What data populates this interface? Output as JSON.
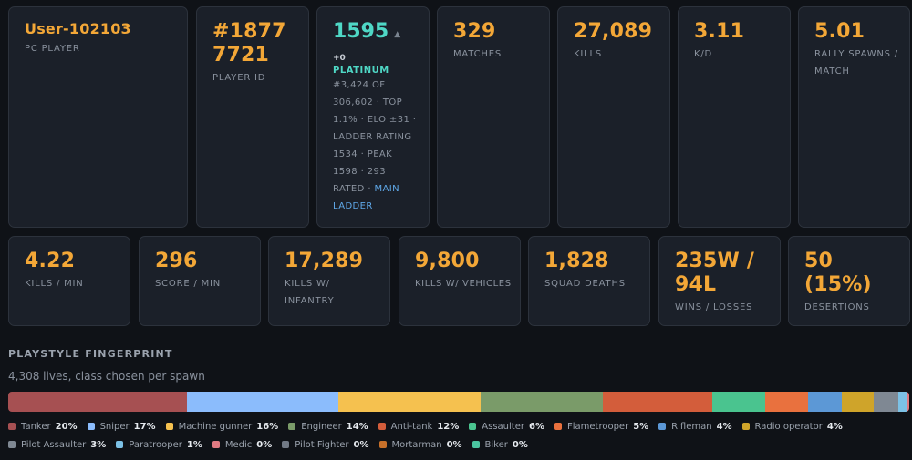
{
  "player": {
    "name": "User-102103",
    "platform": "PC PLAYER",
    "id_value": "#18777721",
    "id_label": "PLAYER ID"
  },
  "elo": {
    "value": "1595",
    "arrow": "▲",
    "delta": "+0",
    "tier": "PLATINUM",
    "desc_line1": "#3,424 of 306,602 · Top 1.1% · ELO ±31 · Ladder rating 1534 · Peak 1598 · 293 rated · ",
    "ladder_link": "Main Ladder"
  },
  "stats_row1": [
    {
      "value": "329",
      "label": "MATCHES"
    },
    {
      "value": "27,089",
      "label": "KILLS"
    },
    {
      "value": "3.11",
      "label": "K/D"
    },
    {
      "value": "5.01",
      "label": "RALLY SPAWNS / MATCH"
    }
  ],
  "stats_row2": [
    {
      "value": "4.22",
      "label": "KILLS / MIN"
    },
    {
      "value": "296",
      "label": "SCORE / MIN"
    },
    {
      "value": "17,289",
      "label": "KILLS W/ INFANTRY"
    },
    {
      "value": "9,800",
      "label": "KILLS W/ VEHICLES"
    },
    {
      "value": "1,828",
      "label": "SQUAD DEATHS"
    },
    {
      "value": "235W / 94L",
      "label": "WINS / LOSSES"
    },
    {
      "value": "50 (15%)",
      "label": "DESERTIONS"
    }
  ],
  "playstyle": {
    "title": "PLAYSTYLE FINGERPRINT",
    "subtitle": "4,308 lives, class chosen per spawn",
    "classes": [
      {
        "name": "Tanker",
        "pct": "20%",
        "share": 19.8,
        "color": "#a65052"
      },
      {
        "name": "Sniper",
        "pct": "17%",
        "share": 16.8,
        "color": "#8bbcfc"
      },
      {
        "name": "Machine gunner",
        "pct": "16%",
        "share": 15.7,
        "color": "#f5c14f"
      },
      {
        "name": "Engineer",
        "pct": "14%",
        "share": 13.6,
        "color": "#7a9b69"
      },
      {
        "name": "Anti-tank",
        "pct": "12%",
        "share": 12.1,
        "color": "#d35d3b"
      },
      {
        "name": "Assaulter",
        "pct": "6%",
        "share": 5.8,
        "color": "#4ac48f"
      },
      {
        "name": "Flametrooper",
        "pct": "5%",
        "share": 4.8,
        "color": "#e9713e"
      },
      {
        "name": "Rifleman",
        "pct": "4%",
        "share": 3.7,
        "color": "#5c98d6"
      },
      {
        "name": "Radio operator",
        "pct": "4%",
        "share": 3.6,
        "color": "#cfa42a"
      },
      {
        "name": "Pilot Assaulter",
        "pct": "3%",
        "share": 2.7,
        "color": "#7f8893"
      },
      {
        "name": "Paratrooper",
        "pct": "1%",
        "share": 1.0,
        "color": "#7cc1e6"
      },
      {
        "name": "Medic",
        "pct": "0%",
        "share": 0.2,
        "color": "#e07a82"
      },
      {
        "name": "Pilot Fighter",
        "pct": "0%",
        "share": 0.0,
        "color": "#727a86"
      },
      {
        "name": "Mortarman",
        "pct": "0%",
        "share": 0.0,
        "color": "#c7702a"
      },
      {
        "name": "Biker",
        "pct": "0%",
        "share": 0.0,
        "color": "#4ac4a0"
      }
    ]
  }
}
